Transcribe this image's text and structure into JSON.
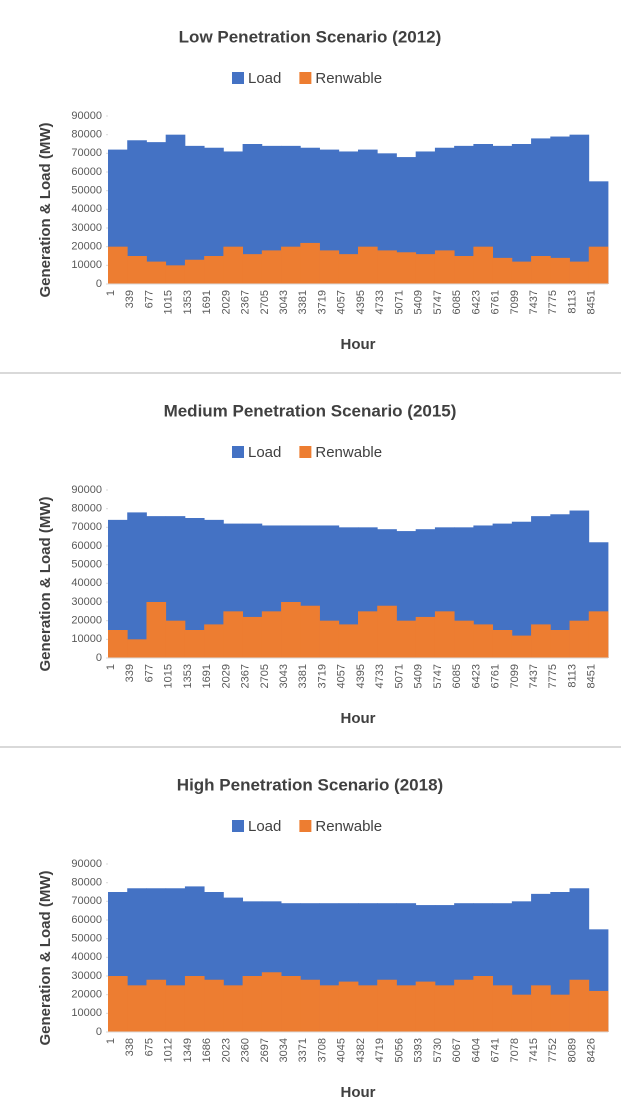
{
  "chart_data": [
    {
      "type": "bar",
      "title": "Low Penetration Scenario (2012)",
      "x_label": "Hour",
      "y_label": "Generation & Load (MW)",
      "categories": [
        "1",
        "339",
        "677",
        "1015",
        "1353",
        "1691",
        "2029",
        "2367",
        "2705",
        "3043",
        "3381",
        "3719",
        "4057",
        "4395",
        "4733",
        "5071",
        "5409",
        "5747",
        "6085",
        "6423",
        "6761",
        "7099",
        "7437",
        "7775",
        "8113",
        "8451"
      ],
      "series": [
        {
          "name": "Load",
          "color": "#4472c4",
          "values": [
            72000,
            77000,
            76000,
            80000,
            74000,
            73000,
            71000,
            75000,
            74000,
            74000,
            73000,
            72000,
            71000,
            72000,
            70000,
            68000,
            71000,
            73000,
            74000,
            75000,
            74000,
            75000,
            78000,
            79000,
            80000,
            55000
          ]
        },
        {
          "name": "Renwable",
          "color": "#ed7d31",
          "values": [
            20000,
            15000,
            12000,
            10000,
            13000,
            15000,
            20000,
            16000,
            18000,
            20000,
            22000,
            18000,
            16000,
            20000,
            18000,
            17000,
            16000,
            18000,
            15000,
            20000,
            14000,
            12000,
            15000,
            14000,
            12000,
            20000
          ]
        }
      ],
      "ylim": [
        0,
        90000
      ],
      "yticks": [
        0,
        10000,
        20000,
        30000,
        40000,
        50000,
        60000,
        70000,
        80000,
        90000
      ],
      "legend": "top"
    },
    {
      "type": "bar",
      "title": "Medium Penetration Scenario (2015)",
      "x_label": "Hour",
      "y_label": "Generation & Load (MW)",
      "categories": [
        "1",
        "339",
        "677",
        "1015",
        "1353",
        "1691",
        "2029",
        "2367",
        "2705",
        "3043",
        "3381",
        "3719",
        "4057",
        "4395",
        "4733",
        "5071",
        "5409",
        "5747",
        "6085",
        "6423",
        "6761",
        "7099",
        "7437",
        "7775",
        "8113",
        "8451"
      ],
      "series": [
        {
          "name": "Load",
          "color": "#4472c4",
          "values": [
            74000,
            78000,
            76000,
            76000,
            75000,
            74000,
            72000,
            72000,
            71000,
            71000,
            71000,
            71000,
            70000,
            70000,
            69000,
            68000,
            69000,
            70000,
            70000,
            71000,
            72000,
            73000,
            76000,
            77000,
            79000,
            62000
          ]
        },
        {
          "name": "Renwable",
          "color": "#ed7d31",
          "values": [
            15000,
            10000,
            30000,
            20000,
            15000,
            18000,
            25000,
            22000,
            25000,
            30000,
            28000,
            20000,
            18000,
            25000,
            28000,
            20000,
            22000,
            25000,
            20000,
            18000,
            15000,
            12000,
            18000,
            15000,
            20000,
            25000
          ]
        }
      ],
      "ylim": [
        0,
        90000
      ],
      "yticks": [
        0,
        10000,
        20000,
        30000,
        40000,
        50000,
        60000,
        70000,
        80000,
        90000
      ],
      "legend": "top"
    },
    {
      "type": "bar",
      "title": "High Penetration Scenario (2018)",
      "x_label": "Hour",
      "y_label": "Generation & Load (MW)",
      "categories": [
        "1",
        "338",
        "675",
        "1012",
        "1349",
        "1686",
        "2023",
        "2360",
        "2697",
        "3034",
        "3371",
        "3708",
        "4045",
        "4382",
        "4719",
        "5056",
        "5393",
        "5730",
        "6067",
        "6404",
        "6741",
        "7078",
        "7415",
        "7752",
        "8089",
        "8426"
      ],
      "series": [
        {
          "name": "Load",
          "color": "#4472c4",
          "values": [
            75000,
            77000,
            77000,
            77000,
            78000,
            75000,
            72000,
            70000,
            70000,
            69000,
            69000,
            69000,
            69000,
            69000,
            69000,
            69000,
            68000,
            68000,
            69000,
            69000,
            69000,
            70000,
            74000,
            75000,
            77000,
            55000
          ]
        },
        {
          "name": "Renwable",
          "color": "#ed7d31",
          "values": [
            30000,
            25000,
            28000,
            25000,
            30000,
            28000,
            25000,
            30000,
            32000,
            30000,
            28000,
            25000,
            27000,
            25000,
            28000,
            25000,
            27000,
            25000,
            28000,
            30000,
            25000,
            20000,
            25000,
            20000,
            28000,
            22000
          ]
        }
      ],
      "ylim": [
        0,
        90000
      ],
      "yticks": [
        0,
        10000,
        20000,
        30000,
        40000,
        50000,
        60000,
        70000,
        80000,
        90000
      ],
      "legend": "top"
    }
  ]
}
